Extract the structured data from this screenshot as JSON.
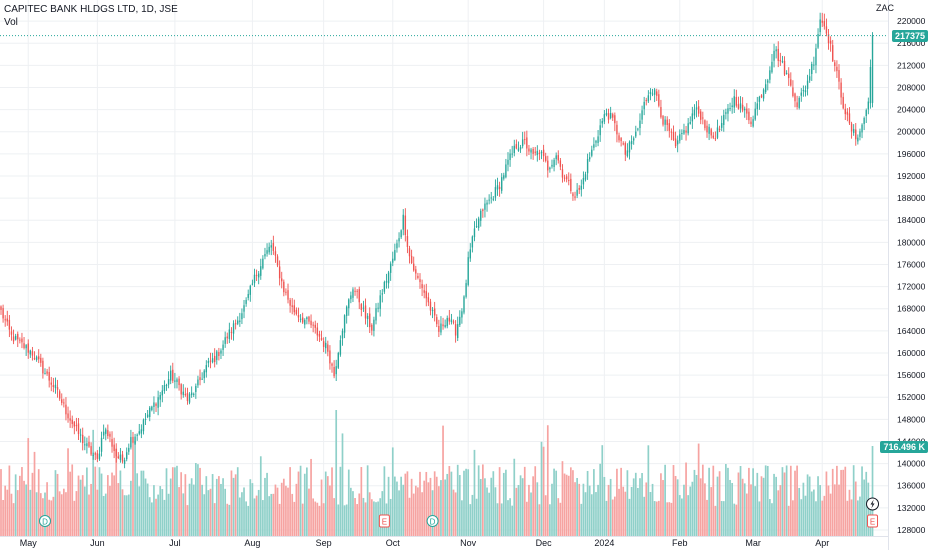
{
  "header": {
    "symbol_line": "CAPITEC BANK HLDGS LTD, 1D, JSE",
    "volume_label": "Vol",
    "currency": "ZAC"
  },
  "last_price_tag": "217375",
  "last_volume_tag": "716.496 K",
  "event_markers": [
    {
      "label": "D",
      "date": "May 8"
    },
    {
      "label": "E",
      "date": "Oct 2"
    },
    {
      "label": "D",
      "date": "Oct 20"
    },
    {
      "label": "E",
      "date": "Apr 18"
    }
  ],
  "colors": {
    "up": "#26a69a",
    "down": "#ef5350",
    "up_volume": "#8fd0c9",
    "down_volume": "#f6a3a1",
    "grid": "#eef0f3",
    "price_line": "#26a69a",
    "axis_text": "#131722"
  },
  "chart_data": {
    "type": "candlestick",
    "title": "CAPITEC BANK HLDGS LTD, 1D, JSE",
    "y_axis": {
      "unit": "ZAC",
      "min": 128000,
      "max": 222000,
      "tick_step": 4000,
      "ticks": [
        "128000",
        "132000",
        "136000",
        "140000",
        "144000",
        "148000",
        "152000",
        "156000",
        "160000",
        "164000",
        "168000",
        "172000",
        "176000",
        "180000",
        "184000",
        "188000",
        "192000",
        "196000",
        "200000",
        "204000",
        "208000",
        "212000",
        "216000",
        "220000"
      ]
    },
    "x_axis": {
      "ticks": [
        "May",
        "Jun",
        "Jul",
        "Aug",
        "Sep",
        "Oct",
        "Nov",
        "Dec",
        "2024",
        "Feb",
        "Mar",
        "Apr"
      ]
    },
    "grid": true,
    "last_price": 217375,
    "last_volume": "716.496 K",
    "close_path": [
      [
        0,
        167500
      ],
      [
        5,
        163000
      ],
      [
        10,
        161500
      ],
      [
        15,
        160000
      ],
      [
        20,
        157000
      ],
      [
        26,
        153500
      ],
      [
        31,
        149500
      ],
      [
        36,
        146000
      ],
      [
        41,
        143000
      ],
      [
        46,
        140500
      ],
      [
        49,
        146500
      ],
      [
        52,
        144500
      ],
      [
        55,
        141500
      ],
      [
        58,
        140500
      ],
      [
        62,
        144500
      ],
      [
        66,
        146000
      ],
      [
        71,
        149500
      ],
      [
        76,
        152500
      ],
      [
        81,
        156000
      ],
      [
        85,
        154000
      ],
      [
        89,
        151500
      ],
      [
        93,
        153500
      ],
      [
        98,
        157500
      ],
      [
        103,
        159500
      ],
      [
        108,
        163000
      ],
      [
        113,
        166000
      ],
      [
        117,
        169000
      ],
      [
        121,
        173500
      ],
      [
        125,
        177000
      ],
      [
        129,
        179500
      ],
      [
        132,
        175500
      ],
      [
        135,
        171500
      ],
      [
        139,
        168000
      ],
      [
        143,
        166500
      ],
      [
        148,
        165000
      ],
      [
        152,
        163000
      ],
      [
        156,
        160500
      ],
      [
        159,
        156000
      ],
      [
        162,
        163000
      ],
      [
        165,
        168000
      ],
      [
        168,
        172000
      ],
      [
        171,
        169500
      ],
      [
        174,
        166500
      ],
      [
        177,
        164500
      ],
      [
        181,
        170000
      ],
      [
        185,
        174500
      ],
      [
        189,
        179500
      ],
      [
        192,
        184500
      ],
      [
        195,
        177500
      ],
      [
        198,
        174000
      ],
      [
        201,
        172000
      ],
      [
        205,
        168000
      ],
      [
        209,
        164000
      ],
      [
        213,
        166500
      ],
      [
        217,
        164000
      ],
      [
        221,
        169500
      ],
      [
        223,
        176500
      ],
      [
        226,
        182000
      ],
      [
        230,
        186000
      ],
      [
        234,
        188000
      ],
      [
        238,
        190500
      ],
      [
        242,
        194500
      ],
      [
        246,
        197500
      ],
      [
        250,
        198000
      ],
      [
        254,
        195500
      ],
      [
        257,
        196500
      ],
      [
        261,
        193500
      ],
      [
        265,
        196000
      ],
      [
        268,
        192500
      ],
      [
        271,
        190500
      ],
      [
        274,
        188500
      ],
      [
        277,
        190000
      ],
      [
        280,
        194500
      ],
      [
        283,
        197500
      ],
      [
        286,
        201000
      ],
      [
        289,
        203500
      ],
      [
        292,
        202000
      ],
      [
        295,
        199000
      ],
      [
        298,
        196000
      ],
      [
        301,
        198000
      ],
      [
        304,
        200500
      ],
      [
        307,
        205000
      ],
      [
        310,
        208000
      ],
      [
        313,
        206500
      ],
      [
        316,
        202000
      ],
      [
        319,
        200000
      ],
      [
        322,
        197000
      ],
      [
        325,
        199500
      ],
      [
        328,
        201000
      ],
      [
        331,
        204000
      ],
      [
        334,
        203000
      ],
      [
        337,
        200500
      ],
      [
        340,
        199000
      ],
      [
        343,
        200500
      ],
      [
        346,
        203000
      ],
      [
        350,
        206000
      ],
      [
        354,
        204000
      ],
      [
        358,
        202000
      ],
      [
        362,
        206000
      ],
      [
        366,
        210000
      ],
      [
        369,
        215000
      ],
      [
        373,
        212000
      ],
      [
        377,
        208500
      ],
      [
        380,
        205000
      ],
      [
        384,
        208000
      ],
      [
        388,
        213000
      ],
      [
        391,
        220500
      ],
      [
        394,
        218500
      ],
      [
        397,
        213500
      ],
      [
        400,
        208500
      ],
      [
        402,
        205000
      ],
      [
        405,
        201000
      ],
      [
        408,
        199000
      ],
      [
        411,
        201000
      ],
      [
        414,
        205500
      ],
      [
        416,
        217375
      ]
    ],
    "note": "The close series is drawn along this path (one candle per trading day); values estimated from the gridlines."
  }
}
